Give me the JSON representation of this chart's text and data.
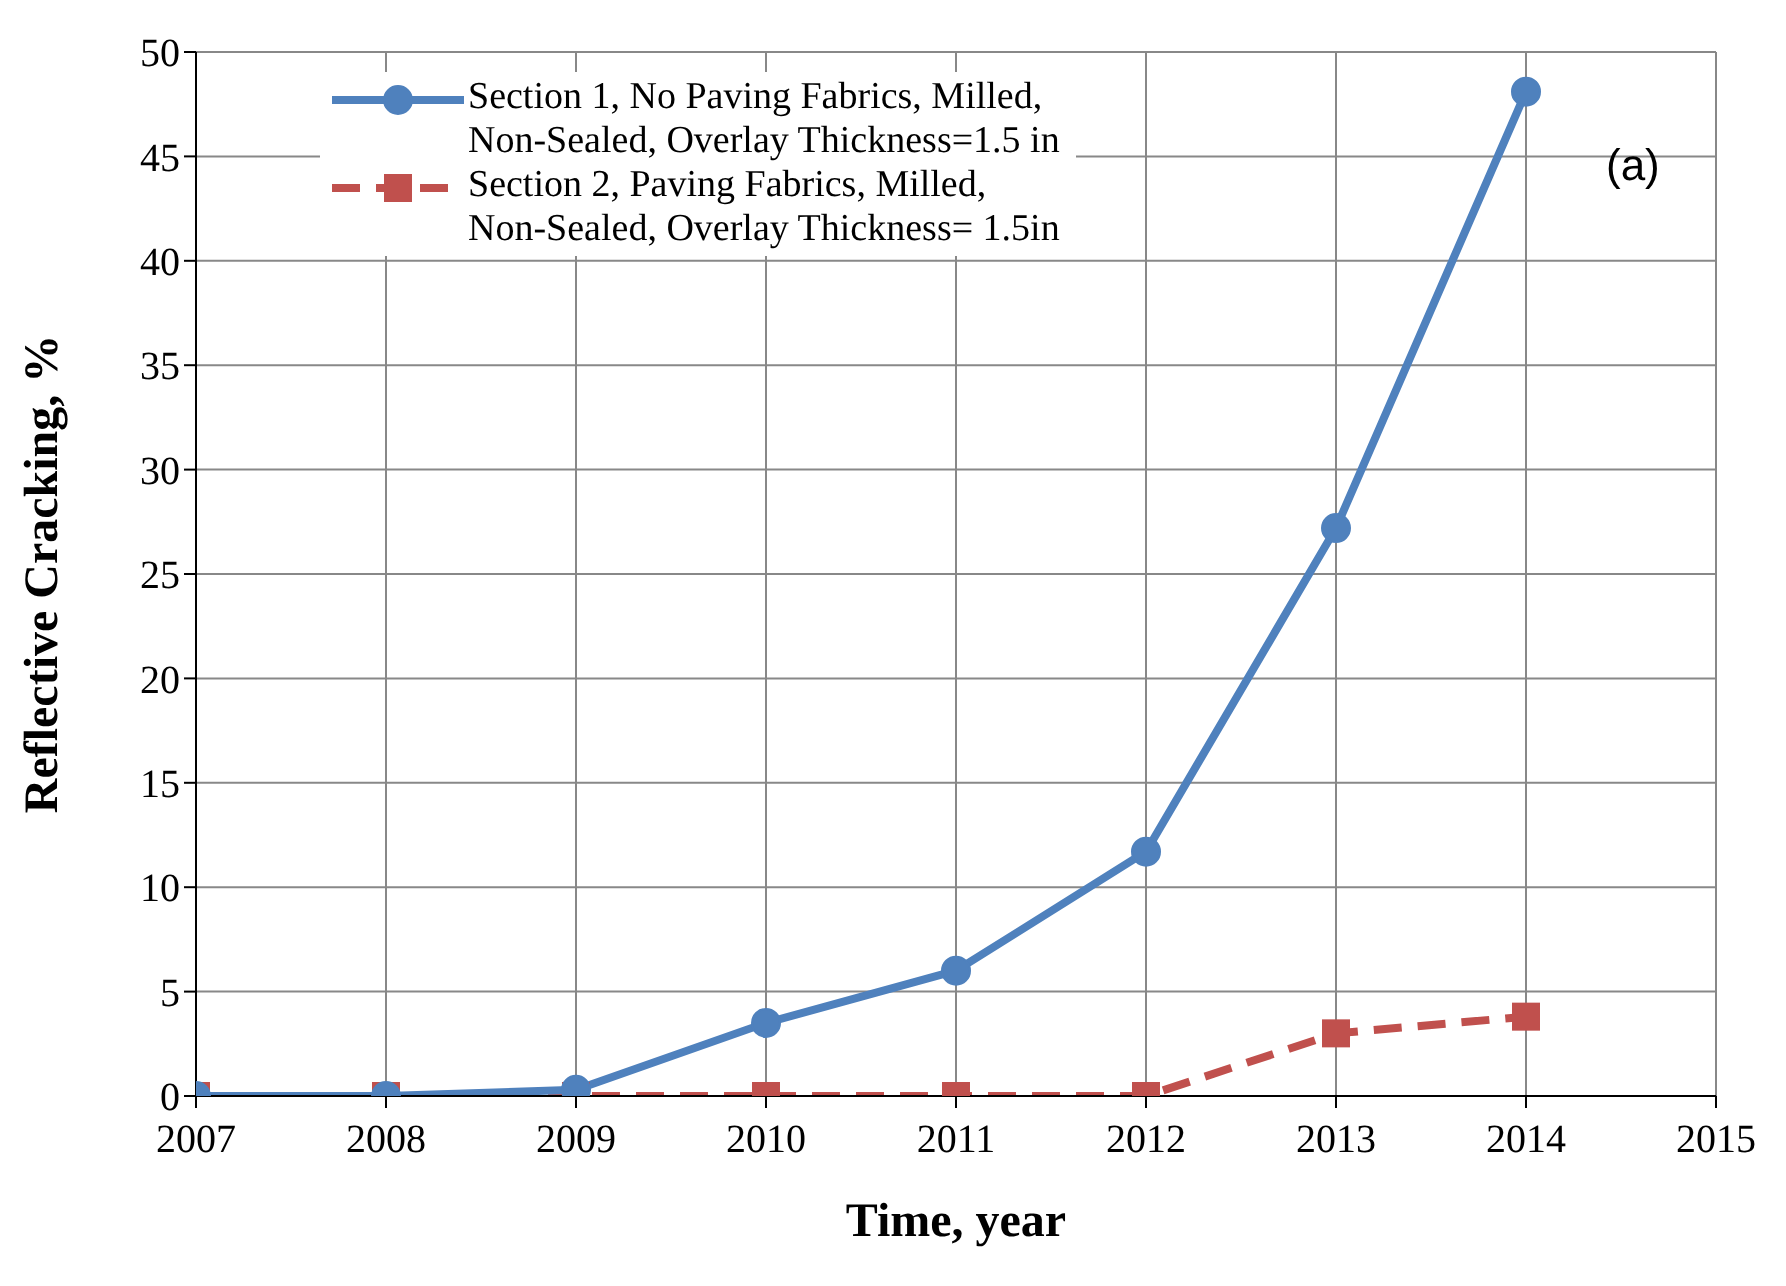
{
  "chart_data": {
    "type": "line",
    "xlabel": "Time, year",
    "ylabel": "Reflective Cracking, %",
    "x": [
      2007,
      2008,
      2009,
      2010,
      2011,
      2012,
      2013,
      2014
    ],
    "series": [
      {
        "name": "Section 1, No Paving Fabrics, Milled, Non-Sealed, Overlay Thickness=1.5 in",
        "color": "#4f81bd",
        "marker": "circle",
        "line_style": "solid",
        "values": [
          0,
          0,
          0.3,
          3.5,
          6,
          11.7,
          27.2,
          48.1
        ]
      },
      {
        "name": "Section 2, Paving Fabrics, Milled,  Non-Sealed, Overlay Thickness= 1.5in",
        "color": "#c0504d",
        "marker": "square",
        "line_style": "dashed",
        "values": [
          0,
          0,
          0,
          0,
          0,
          0,
          3,
          3.8
        ]
      }
    ],
    "xlim": [
      2007,
      2015
    ],
    "xticks": [
      2007,
      2008,
      2009,
      2010,
      2011,
      2012,
      2013,
      2014,
      2015
    ],
    "ylim": [
      0,
      50
    ],
    "yticks": [
      0,
      5,
      10,
      15,
      20,
      25,
      30,
      35,
      40,
      45,
      50
    ],
    "grid": true,
    "legend": "top left",
    "annotations": [
      "(a)"
    ]
  }
}
